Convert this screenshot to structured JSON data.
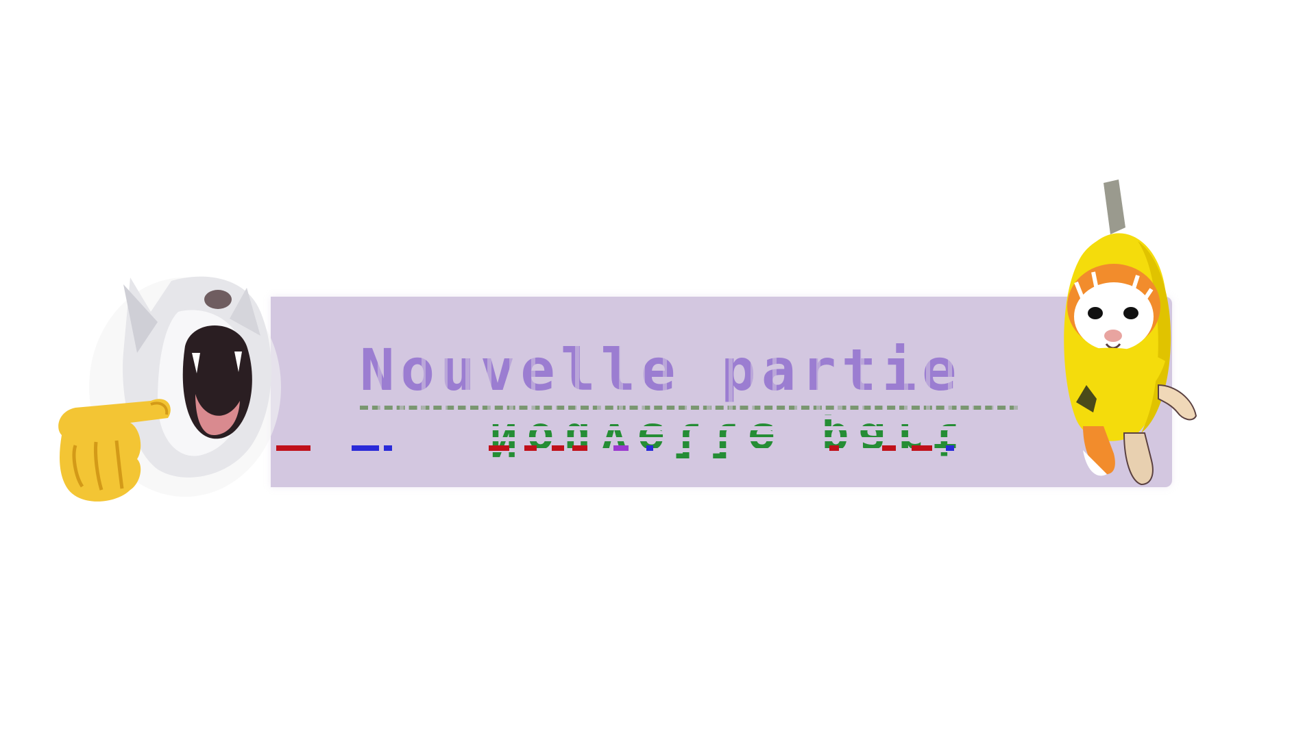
{
  "menu": {
    "new_game_label": "Nouvelle partie"
  },
  "colors": {
    "background": "#ffffff",
    "button_fill": "#d3c7e0",
    "label_text": "#9b7dd1",
    "glitch_green": "#1c8a2c",
    "glitch_red": "#c0101a",
    "glitch_blue": "#2a2ad8",
    "banana_yellow": "#f4dc0c"
  },
  "stickers": {
    "left": "screaming-cat-pointing-icon",
    "right": "banana-cat-icon"
  }
}
